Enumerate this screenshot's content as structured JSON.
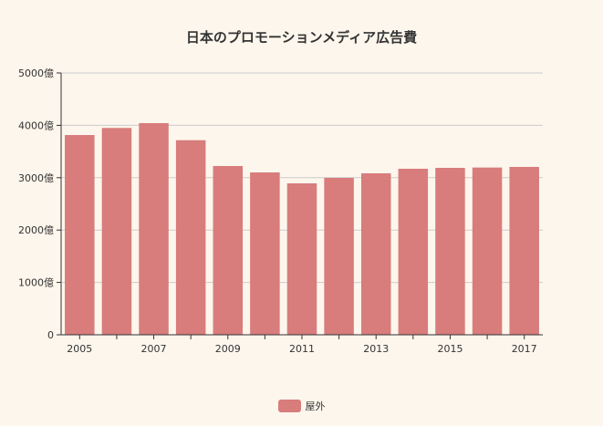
{
  "chart_data": {
    "type": "bar",
    "title": "日本のプロモーションメディア広告費",
    "categories": [
      "2005",
      "2006",
      "2007",
      "2008",
      "2009",
      "2010",
      "2011",
      "2012",
      "2013",
      "2014",
      "2015",
      "2016",
      "2017"
    ],
    "x_tick_labels": [
      "2005",
      "2007",
      "2009",
      "2011",
      "2013",
      "2015",
      "2017"
    ],
    "series": [
      {
        "name": "屋外",
        "color": "#d87c7c",
        "values": [
          3815,
          3950,
          4042,
          3716,
          3223,
          3101,
          2892,
          2997,
          3084,
          3171,
          3188,
          3194,
          3206
        ]
      }
    ],
    "y_tick_labels": [
      "0",
      "1000億",
      "2000億",
      "3000億",
      "4000億",
      "5000億"
    ],
    "ylim": [
      0,
      5000
    ],
    "grid": true,
    "legend_position": "bottom-center",
    "xlabel": "",
    "ylabel": ""
  }
}
